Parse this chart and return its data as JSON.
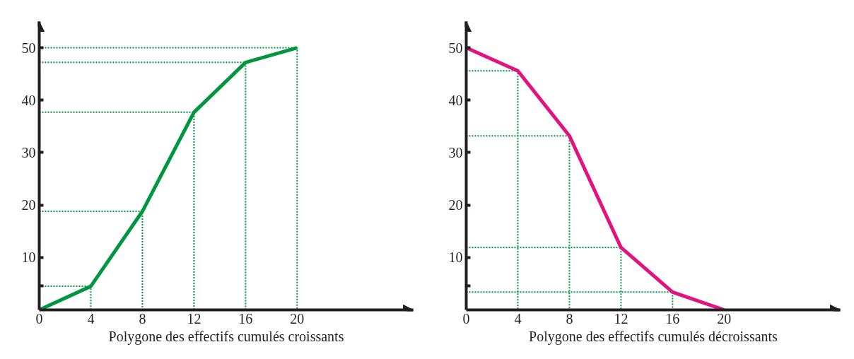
{
  "chart_data": [
    {
      "type": "line",
      "xlabel": "Polygone des effectifs cumulés croissants",
      "x": [
        0,
        4,
        8,
        12,
        16,
        20
      ],
      "series": [
        {
          "color": "#009640",
          "values": [
            0,
            4.5,
            18.8,
            37.7,
            47.2,
            50
          ]
        },
        {
          "color": "#009640",
          "line_style": "dotted",
          "x": [
            0,
            4,
            4
          ],
          "values": [
            4.5,
            4.5,
            0
          ]
        },
        {
          "color": "#009640",
          "line_style": "dotted",
          "x": [
            0,
            8,
            8
          ],
          "values": [
            18.8,
            18.8,
            0
          ]
        },
        {
          "color": "#009640",
          "line_style": "dotted",
          "x": [
            0,
            12,
            12
          ],
          "values": [
            37.7,
            37.7,
            0
          ]
        },
        {
          "color": "#009640",
          "line_style": "dotted",
          "x": [
            0,
            16,
            16
          ],
          "values": [
            47.2,
            47.2,
            0
          ]
        },
        {
          "color": "#009640",
          "line_style": "dotted",
          "x": [
            0,
            20,
            20
          ],
          "values": [
            50,
            50,
            0
          ]
        }
      ],
      "xlim": [
        0,
        29
      ],
      "ylim": [
        0,
        55
      ],
      "xticks": [
        0,
        4,
        8,
        12,
        16,
        20
      ],
      "yticks": [
        {
          "value": 4.6,
          "label": null
        },
        10,
        20,
        30,
        40,
        50
      ],
      "marker": "none",
      "line_style": "solid"
    },
    {
      "type": "line",
      "xlabel": "Polygone des effectifs cumulés décroissants",
      "x": [
        0,
        4,
        8,
        12,
        16,
        20
      ],
      "series": [
        {
          "color": "#e2137f",
          "values": [
            50,
            45.6,
            33.2,
            11.9,
            3.4,
            0
          ]
        },
        {
          "color": "#009640",
          "line_style": "dotted",
          "x": [
            0,
            4,
            4
          ],
          "values": [
            45.6,
            45.6,
            0
          ]
        },
        {
          "color": "#009640",
          "line_style": "dotted",
          "x": [
            0,
            8,
            8
          ],
          "values": [
            33.2,
            33.2,
            0
          ]
        },
        {
          "color": "#009640",
          "line_style": "dotted",
          "x": [
            0,
            12,
            12
          ],
          "values": [
            11.9,
            11.9,
            0
          ]
        },
        {
          "color": "#009640",
          "line_style": "dotted",
          "x": [
            0,
            16,
            16
          ],
          "values": [
            3.4,
            3.4,
            0
          ]
        }
      ],
      "xlim": [
        0,
        29
      ],
      "ylim": [
        0,
        55
      ],
      "xticks": [
        0,
        4,
        8,
        12,
        16,
        20
      ],
      "yticks": [
        {
          "value": 4.6,
          "label": null
        },
        10,
        20,
        30,
        40,
        50
      ],
      "marker": "none",
      "line_style": "solid"
    }
  ]
}
